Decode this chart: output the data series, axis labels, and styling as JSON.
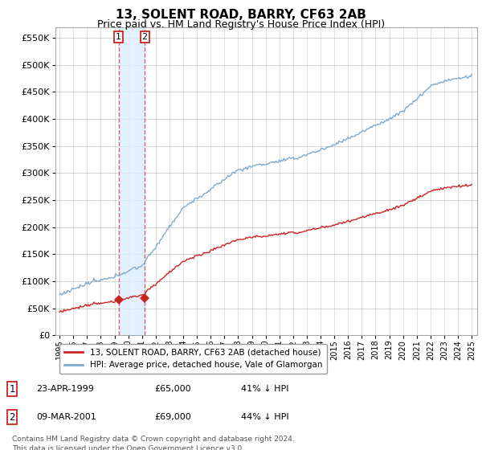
{
  "title": "13, SOLENT ROAD, BARRY, CF63 2AB",
  "subtitle": "Price paid vs. HM Land Registry's House Price Index (HPI)",
  "title_fontsize": 11,
  "subtitle_fontsize": 9,
  "ylabel_ticks": [
    "£0",
    "£50K",
    "£100K",
    "£150K",
    "£200K",
    "£250K",
    "£300K",
    "£350K",
    "£400K",
    "£450K",
    "£500K",
    "£550K"
  ],
  "ytick_values": [
    0,
    50000,
    100000,
    150000,
    200000,
    250000,
    300000,
    350000,
    400000,
    450000,
    500000,
    550000
  ],
  "ylim": [
    0,
    570000
  ],
  "hpi_color": "#7faacc",
  "price_color": "#cc2222",
  "marker_color": "#cc2222",
  "sale1_date_num": 1999.3,
  "sale1_price": 65000,
  "sale2_date_num": 2001.2,
  "sale2_price": 69000,
  "legend_house": "13, SOLENT ROAD, BARRY, CF63 2AB (detached house)",
  "legend_hpi": "HPI: Average price, detached house, Vale of Glamorgan",
  "table_row1": [
    "1",
    "23-APR-1999",
    "£65,000",
    "41% ↓ HPI"
  ],
  "table_row2": [
    "2",
    "09-MAR-2001",
    "£69,000",
    "44% ↓ HPI"
  ],
  "footnote": "Contains HM Land Registry data © Crown copyright and database right 2024.\nThis data is licensed under the Open Government Licence v3.0.",
  "vline_color": "#cc6666",
  "shade_color": "#ddeeff",
  "background_color": "#ffffff",
  "grid_color": "#cccccc"
}
